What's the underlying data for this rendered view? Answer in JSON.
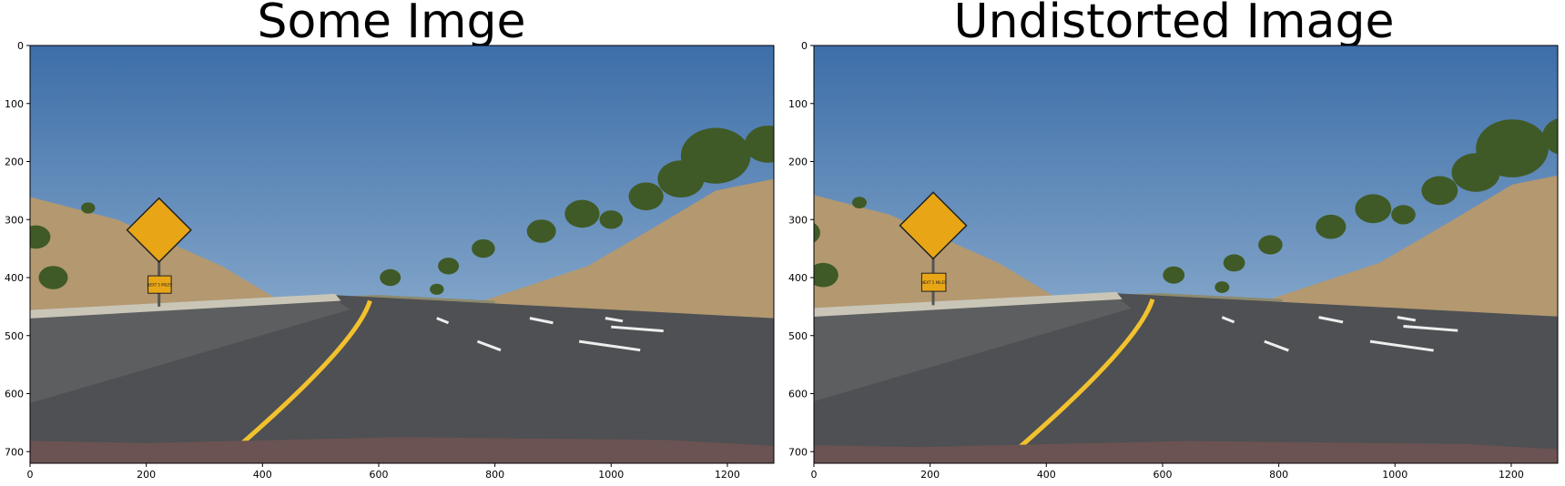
{
  "figure": {
    "left_title": "Some Imge",
    "right_title": "Undistorted Image"
  },
  "axes": {
    "x_ticks": [
      "0",
      "200",
      "400",
      "600",
      "800",
      "1000",
      "1200"
    ],
    "y_ticks": [
      "0",
      "100",
      "200",
      "300",
      "400",
      "500",
      "600",
      "700"
    ],
    "x_range": [
      0,
      1280
    ],
    "y_range": [
      720,
      0
    ]
  },
  "sign": {
    "small_text": "NEXT 5 MILES"
  },
  "colors": {
    "sky_top": "#3d6ea8",
    "sky_bottom": "#a9c4dc",
    "sign_yellow": "#e8a617",
    "lane_yellow": "#f2c12e",
    "asphalt": "#4e5053",
    "hill": "#b39870",
    "tree": "#3f5a26"
  }
}
